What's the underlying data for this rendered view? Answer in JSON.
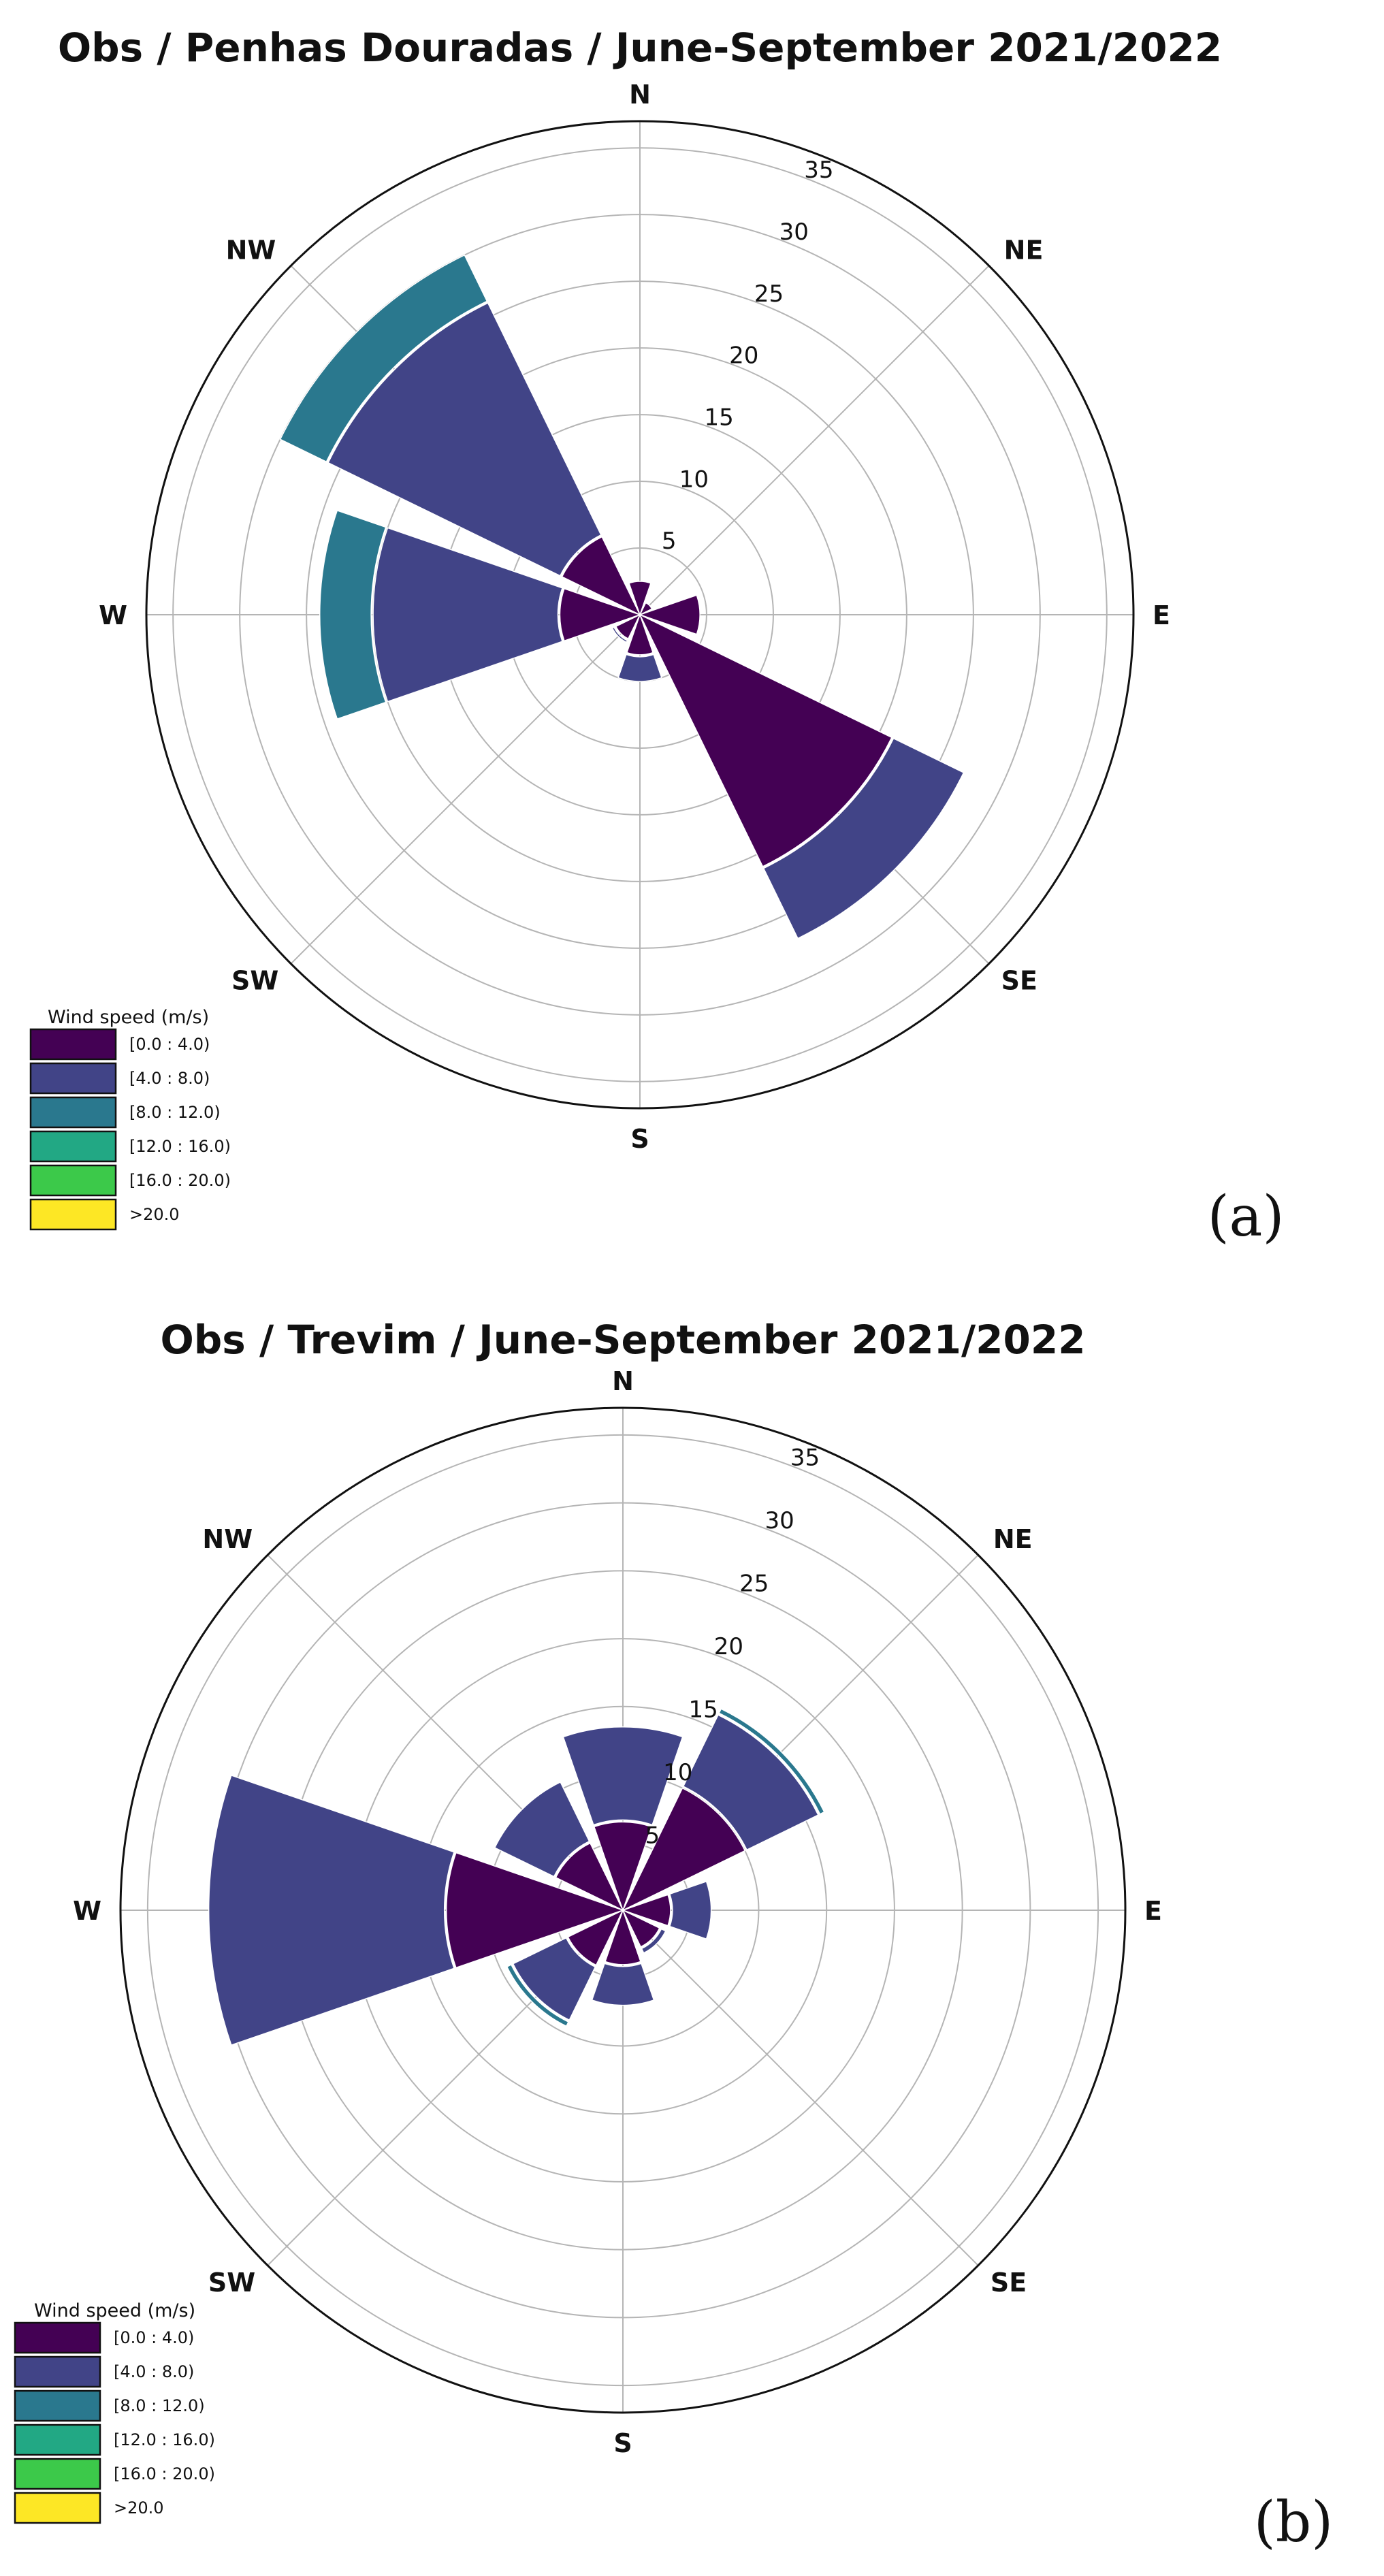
{
  "legend": {
    "title": "Wind speed (m/s)",
    "bins": [
      "[0.0 : 4.0)",
      "[4.0 : 8.0)",
      "[8.0 : 12.0)",
      "[12.0 : 16.0)",
      "[16.0 : 20.0)",
      ">20.0"
    ],
    "colors": [
      "#440154",
      "#414487",
      "#2a788e",
      "#22a884",
      "#3cc94a",
      "#fde725"
    ]
  },
  "chart_data": [
    {
      "type": "windrose",
      "panel_label": "(a)",
      "title": "Obs /  Penhas Douradas /  June-September 2021/2022",
      "direction_labels": [
        "N",
        "NE",
        "E",
        "SE",
        "S",
        "SW",
        "W",
        "NW"
      ],
      "radial_ticks": [
        5,
        10,
        15,
        20,
        25,
        30,
        35
      ],
      "rlim": [
        0,
        37
      ],
      "grid": true,
      "legend_position": "bottom-left",
      "sectors_deg": [
        0,
        45,
        90,
        135,
        180,
        225,
        270,
        315
      ],
      "series": [
        {
          "name": "[0.0 : 4.0)",
          "values": [
            2.5,
            1.0,
            4.5,
            21.0,
            3.0,
            2.0,
            6.0,
            6.5
          ]
        },
        {
          "name": "[4.0 : 8.0)",
          "values": [
            0.0,
            0.0,
            0.0,
            6.0,
            2.0,
            0.3,
            14.0,
            19.5
          ]
        },
        {
          "name": "[8.0 : 12.0)",
          "values": [
            0.0,
            0.0,
            0.0,
            0.0,
            0.0,
            0.0,
            4.0,
            4.0
          ]
        },
        {
          "name": "[12.0 : 16.0)",
          "values": [
            0.0,
            0.0,
            0.0,
            0.0,
            0.0,
            0.0,
            0.0,
            0.0
          ]
        },
        {
          "name": "[16.0 : 20.0)",
          "values": [
            0.0,
            0.0,
            0.0,
            0.0,
            0.0,
            0.0,
            0.0,
            0.0
          ]
        },
        {
          "name": ">20.0",
          "values": [
            0.0,
            0.0,
            0.0,
            0.0,
            0.0,
            0.0,
            0.0,
            0.0
          ]
        }
      ]
    },
    {
      "type": "windrose",
      "panel_label": "(b)",
      "title": "Obs /  Trevim /  June-September 2021/2022",
      "direction_labels": [
        "N",
        "NE",
        "E",
        "SE",
        "S",
        "SW",
        "W",
        "NW"
      ],
      "radial_ticks": [
        5,
        10,
        15,
        20,
        25,
        30,
        35
      ],
      "rlim": [
        0,
        37
      ],
      "grid": true,
      "legend_position": "bottom-left",
      "sectors_deg": [
        0,
        45,
        90,
        135,
        180,
        225,
        270,
        315
      ],
      "series": [
        {
          "name": "[0.0 : 4.0)",
          "values": [
            6.5,
            10.0,
            3.5,
            3.0,
            4.0,
            4.5,
            13.0,
            5.5
          ]
        },
        {
          "name": "[4.0 : 8.0)",
          "values": [
            7.0,
            6.0,
            3.0,
            0.5,
            3.0,
            4.5,
            17.5,
            5.0
          ]
        },
        {
          "name": "[8.0 : 12.0)",
          "values": [
            0.0,
            0.5,
            0.0,
            0.0,
            0.0,
            0.5,
            0.0,
            0.0
          ]
        },
        {
          "name": "[12.0 : 16.0)",
          "values": [
            0.0,
            0.0,
            0.0,
            0.0,
            0.0,
            0.0,
            0.0,
            0.0
          ]
        },
        {
          "name": "[16.0 : 20.0)",
          "values": [
            0.0,
            0.0,
            0.0,
            0.0,
            0.0,
            0.0,
            0.0,
            0.0
          ]
        },
        {
          "name": ">20.0",
          "values": [
            0.0,
            0.0,
            0.0,
            0.0,
            0.0,
            0.0,
            0.0,
            0.0
          ]
        }
      ]
    }
  ]
}
